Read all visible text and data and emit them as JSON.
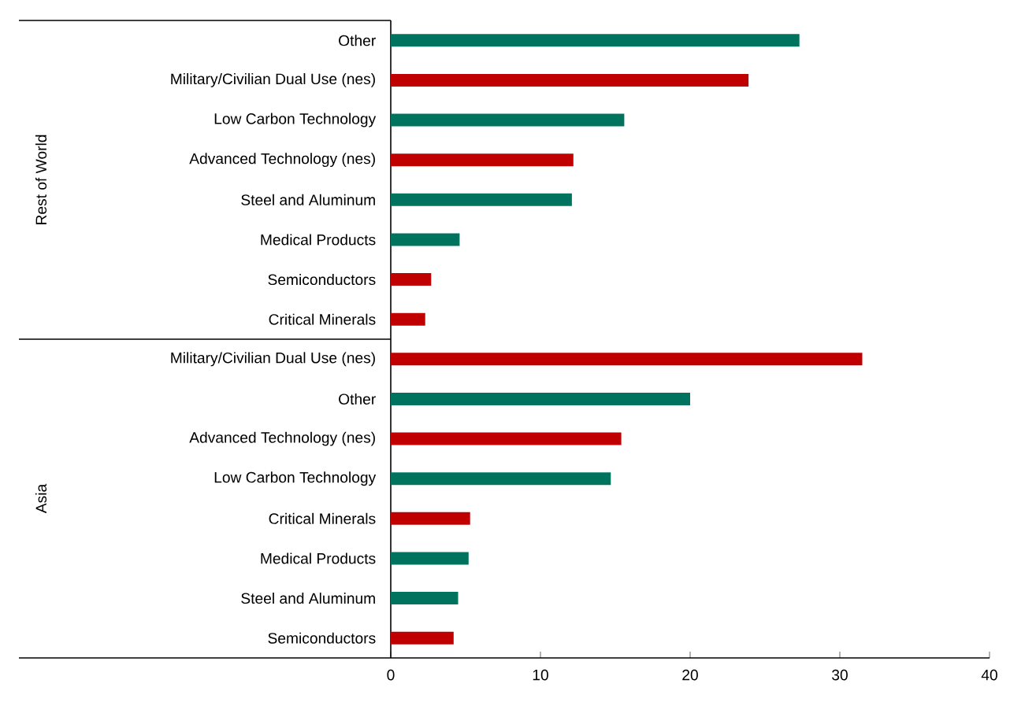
{
  "chart_data": {
    "type": "bar",
    "orientation": "horizontal",
    "categories": [
      "Other",
      "Military/Civilian Dual Use (nes)",
      "Low Carbon Technology",
      "Advanced Technology (nes)",
      "Steel and Aluminum",
      "Medical Products",
      "Semiconductors",
      "Critical Minerals",
      "Military/Civilian Dual Use (nes)",
      "Other",
      "Advanced Technology (nes)",
      "Low Carbon Technology",
      "Critical Minerals",
      "Medical Products",
      "Steel and Aluminum",
      "Semiconductors"
    ],
    "values": [
      27.3,
      23.9,
      15.6,
      12.2,
      12.1,
      4.6,
      2.7,
      2.3,
      31.5,
      20.0,
      15.4,
      14.7,
      5.3,
      5.2,
      4.5,
      4.2
    ],
    "colors": [
      "#00735f",
      "#c00000",
      "#00735f",
      "#c00000",
      "#00735f",
      "#00735f",
      "#c00000",
      "#c00000",
      "#c00000",
      "#00735f",
      "#c00000",
      "#00735f",
      "#c00000",
      "#00735f",
      "#00735f",
      "#c00000"
    ],
    "xlim": [
      0,
      40
    ],
    "xticks": [
      0,
      10,
      20,
      30,
      40
    ],
    "annotations": [
      "Rest of World",
      "Asia"
    ]
  }
}
